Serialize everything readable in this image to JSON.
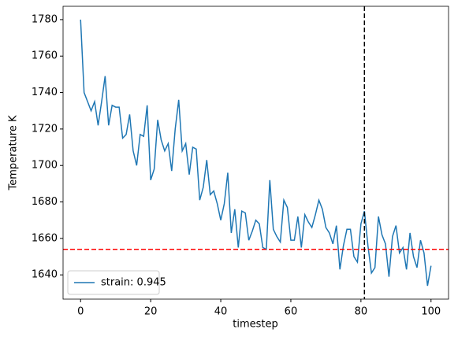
{
  "chart_data": {
    "type": "line",
    "x_label": "timestep",
    "y_label": "Temperature K",
    "x": [
      0,
      1,
      2,
      3,
      4,
      5,
      6,
      7,
      8,
      9,
      10,
      11,
      12,
      13,
      14,
      15,
      16,
      17,
      18,
      19,
      20,
      21,
      22,
      23,
      24,
      25,
      26,
      27,
      28,
      29,
      30,
      31,
      32,
      33,
      34,
      35,
      36,
      37,
      38,
      39,
      40,
      41,
      42,
      43,
      44,
      45,
      46,
      47,
      48,
      49,
      50,
      51,
      52,
      53,
      54,
      55,
      56,
      57,
      58,
      59,
      60,
      61,
      62,
      63,
      64,
      65,
      66,
      67,
      68,
      69,
      70,
      71,
      72,
      73,
      74,
      75,
      76,
      77,
      78,
      79,
      80,
      81,
      82,
      83,
      84,
      85,
      86,
      87,
      88,
      89,
      90,
      91,
      92,
      93,
      94,
      95,
      96,
      97,
      98,
      99,
      100
    ],
    "series": [
      {
        "name": "strain: 0.945",
        "color": "#1f77b4",
        "values": [
          1780,
          1740,
          1735,
          1730,
          1735,
          1722,
          1735,
          1749,
          1722,
          1733,
          1732,
          1732,
          1715,
          1717,
          1728,
          1708,
          1700,
          1717,
          1716,
          1733,
          1692,
          1698,
          1725,
          1714,
          1708,
          1712,
          1697,
          1720,
          1736,
          1708,
          1712,
          1695,
          1710,
          1709,
          1681,
          1688,
          1703,
          1684,
          1686,
          1679,
          1670,
          1679,
          1696,
          1663,
          1676,
          1655,
          1675,
          1674,
          1659,
          1664,
          1670,
          1668,
          1655,
          1654,
          1692,
          1665,
          1661,
          1658,
          1681,
          1677,
          1659,
          1659,
          1672,
          1655,
          1673,
          1669,
          1666,
          1673,
          1681,
          1676,
          1666,
          1663,
          1657,
          1667,
          1643,
          1656,
          1665,
          1665,
          1650,
          1647,
          1668,
          1675,
          1656,
          1641,
          1644,
          1672,
          1662,
          1657,
          1639,
          1661,
          1667,
          1652,
          1655,
          1643,
          1663,
          1650,
          1644,
          1659,
          1652,
          1634,
          1645
        ]
      }
    ],
    "hline": {
      "value": 1654,
      "color": "#ff0000"
    },
    "vline": {
      "value": 81,
      "color": "#000000"
    },
    "xlim": [
      -5,
      105
    ],
    "xticks": [
      0,
      20,
      40,
      60,
      80,
      100
    ],
    "ylim": [
      1626.7,
      1787.3
    ],
    "yticks": [
      1640,
      1660,
      1680,
      1700,
      1720,
      1740,
      1760,
      1780
    ],
    "legend": "lower left"
  }
}
